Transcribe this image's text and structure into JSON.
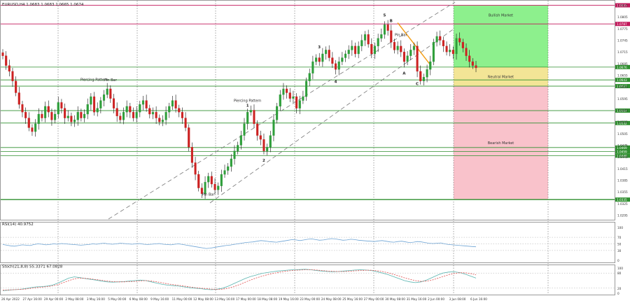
{
  "window": {
    "symbol_header": "EURUSD,H4  1.0683 1.0683 1.0665 1.0674"
  },
  "colors": {
    "bull": "#2e9e3a",
    "bear": "#cc2222",
    "zone_bull": "#8df08d",
    "zone_neutral": "#f3e596",
    "zone_bear": "#f9c2cb",
    "level_green": "#2f8f2f",
    "level_red": "#c2185b",
    "channel": "#777777",
    "trendline": "#f39c12",
    "rsi_line": "#6ea4d4",
    "stoch_main": "#5ab5b0",
    "stoch_signal": "#e05050"
  },
  "chart_data": [
    {
      "type": "candlestick",
      "name": "main",
      "ylim": [
        1.0285,
        1.0845
      ],
      "y_ticks": [
        "1.0835",
        "1.0805",
        "1.0775",
        "1.0745",
        "1.0715",
        "1.0685",
        "1.0655",
        "1.0625",
        "1.0595",
        "1.0565",
        "1.0535",
        "1.0505",
        "1.0475",
        "1.0445",
        "1.0415",
        "1.0385",
        "1.0355",
        "1.0325",
        "1.0295"
      ],
      "x_tick_labels": [
        "26 Apr 2022",
        "27 Apr 16:00",
        "29 Apr 00:00",
        "2 May 08:00",
        "3 May 16:00",
        "5 May 00:00",
        "6 May 08:00",
        "9 May 16:00",
        "11 May 00:00",
        "12 May 08:00",
        "13 May 16:00",
        "17 May 00:00",
        "18 May 08:00",
        "19 May 16:00",
        "23 May 00:00",
        "24 May 08:00",
        "25 May 16:00",
        "27 May 00:00",
        "30 May 08:00",
        "31 May 16:00",
        "2 Jun 00:00",
        "3 Jun 08:00",
        "6 Jun 16:00"
      ],
      "closes": [
        1.0705,
        1.068,
        1.0665,
        1.064,
        1.061,
        1.058,
        1.056,
        1.0545,
        1.052,
        1.051,
        1.053,
        1.0555,
        1.0545,
        1.0575,
        1.056,
        1.054,
        1.0555,
        1.0585,
        1.057,
        1.0545,
        1.055,
        1.0535,
        1.054,
        1.056,
        1.0545,
        1.0555,
        1.058,
        1.06,
        1.056,
        1.057,
        1.059,
        1.0605,
        1.062,
        1.0595,
        1.057,
        1.055,
        1.054,
        1.056,
        1.0575,
        1.056,
        1.0545,
        1.056,
        1.058,
        1.059,
        1.057,
        1.0555,
        1.056,
        1.0545,
        1.0535,
        1.054,
        1.056,
        1.0575,
        1.059,
        1.057,
        1.056,
        1.0545,
        1.052,
        1.047,
        1.043,
        1.04,
        1.0365,
        1.035,
        1.038,
        1.0395,
        1.0375,
        1.036,
        1.037,
        1.04,
        1.041,
        1.042,
        1.044,
        1.046,
        1.0475,
        1.05,
        1.053,
        1.056,
        1.0565,
        1.053,
        1.05,
        1.049,
        1.046,
        1.047,
        1.05,
        1.054,
        1.0575,
        1.0605,
        1.062,
        1.061,
        1.0595,
        1.06,
        1.057,
        1.059,
        1.06,
        1.064,
        1.066,
        1.069,
        1.07,
        1.069,
        1.071,
        1.072,
        1.07,
        1.0685,
        1.067,
        1.069,
        1.07,
        1.071,
        1.072,
        1.073,
        1.071,
        1.073,
        1.0745,
        1.076,
        1.0735,
        1.071,
        1.073,
        1.075,
        1.076,
        1.0785,
        1.077,
        1.074,
        1.072,
        1.073,
        1.0715,
        1.069,
        1.0705,
        1.072,
        1.073,
        1.0665,
        1.064,
        1.065,
        1.067,
        1.069,
        1.074,
        1.0755,
        1.0745,
        1.073,
        1.0715,
        1.072,
        1.071,
        1.075,
        1.074,
        1.0725,
        1.0705,
        1.069,
        1.068,
        1.0674
      ],
      "levels": [
        {
          "value": 1.0835,
          "label": "1.0835",
          "color": "red"
        },
        {
          "value": 1.0787,
          "label": "1.0787",
          "color": "red"
        },
        {
          "value": 1.0676,
          "label": "1.0676",
          "color": "green"
        },
        {
          "value": 1.0643,
          "label": "1.0643",
          "color": "green"
        },
        {
          "value": 1.0627,
          "label": "1.0627",
          "color": "green"
        },
        {
          "value": 1.0564,
          "label": "1.0564",
          "color": "green"
        },
        {
          "value": 1.0532,
          "label": "1.0532",
          "color": "green"
        },
        {
          "value": 1.0469,
          "label": "1.0469",
          "color": "green"
        },
        {
          "value": 1.0459,
          "label": "1.0459",
          "color": "green"
        },
        {
          "value": 1.0448,
          "label": "1.0448",
          "color": "green"
        },
        {
          "value": 1.0335,
          "label": "1.0335",
          "color": "green"
        }
      ],
      "zones": [
        {
          "label": "Bullish Market",
          "from": 1.0835,
          "to": 1.0676,
          "color": "bull"
        },
        {
          "label": "Neutral Market",
          "from": 1.0676,
          "to": 1.0627,
          "color": "neutral"
        },
        {
          "label": "Bearish Market",
          "from": 1.0627,
          "to": 1.0335,
          "color": "bear"
        }
      ],
      "annotations": [
        "Piercing Pattern",
        "Pin Bar",
        "Piercing Pattern",
        "Pin Bar",
        "Pin Bar",
        "1",
        "2",
        "3",
        "4",
        "5",
        "A",
        "B",
        "C"
      ]
    },
    {
      "type": "line",
      "name": "rsi",
      "header": "RSI(14) 40.9752",
      "ylim": [
        0,
        100
      ],
      "y_ticks": [
        "100",
        "70",
        "50",
        "30",
        "0"
      ],
      "values": [
        48,
        46,
        44,
        43,
        45,
        47,
        46,
        45,
        48,
        50,
        49,
        47,
        48,
        50,
        49,
        51,
        50,
        49,
        48,
        47,
        46,
        47,
        48,
        50,
        49,
        51,
        52,
        50,
        49,
        50,
        52,
        51,
        50,
        49,
        50,
        51,
        49,
        48,
        49,
        50,
        51,
        49,
        48,
        47,
        49,
        50,
        48,
        46,
        44,
        42,
        40,
        38,
        36,
        37,
        39,
        41,
        43,
        45,
        46,
        48,
        50,
        52,
        54,
        55,
        56,
        58,
        60,
        59,
        57,
        56,
        55,
        57,
        59,
        61,
        63,
        62,
        60,
        62,
        64,
        65,
        63,
        61,
        62,
        64,
        66,
        65,
        63,
        61,
        62,
        64,
        63,
        61,
        60,
        59,
        58,
        57,
        59,
        60,
        58,
        56,
        55,
        57,
        58,
        56,
        54,
        55,
        57,
        56,
        54,
        52,
        51,
        52,
        53,
        50,
        48,
        47,
        46,
        45,
        44,
        43,
        42,
        41
      ]
    },
    {
      "type": "line",
      "name": "stoch",
      "header": "Stoch(21,8,8) 55.3371 67.0828",
      "ylim": [
        0,
        100
      ],
      "y_ticks": [
        "100",
        "80",
        "20",
        "0"
      ],
      "series": [
        {
          "values": [
            10,
            12,
            14,
            15,
            18,
            22,
            25,
            26,
            28,
            32,
            40,
            50,
            60,
            65,
            62,
            58,
            55,
            52,
            48,
            45,
            44,
            45,
            46,
            48,
            50,
            52,
            50,
            45,
            40,
            35,
            32,
            30,
            28,
            25,
            22,
            20,
            18,
            15,
            14,
            16,
            20,
            28,
            38,
            48,
            58,
            66,
            72,
            78,
            82,
            85,
            88,
            90,
            92,
            93,
            94,
            95,
            93,
            90,
            88,
            86,
            85,
            86,
            88,
            90,
            92,
            93,
            92,
            90,
            85,
            80,
            74,
            66,
            58,
            50,
            45,
            42,
            45,
            52,
            62,
            72,
            80,
            84,
            85,
            82,
            76,
            68,
            60
          ]
        },
        {
          "values": [
            12,
            13,
            14,
            15,
            16,
            19,
            22,
            24,
            26,
            29,
            34,
            42,
            50,
            57,
            60,
            59,
            57,
            54,
            51,
            48,
            46,
            45,
            45,
            46,
            47,
            49,
            50,
            48,
            45,
            41,
            37,
            34,
            31,
            28,
            25,
            22,
            20,
            18,
            16,
            15,
            16,
            20,
            26,
            34,
            43,
            52,
            60,
            67,
            73,
            78,
            82,
            86,
            89,
            91,
            92,
            93,
            93,
            92,
            90,
            88,
            87,
            86,
            86,
            87,
            89,
            90,
            91,
            91,
            89,
            86,
            81,
            75,
            68,
            61,
            55,
            50,
            47,
            48,
            52,
            59,
            66,
            73,
            78,
            81,
            81,
            78,
            73
          ]
        }
      ]
    }
  ]
}
